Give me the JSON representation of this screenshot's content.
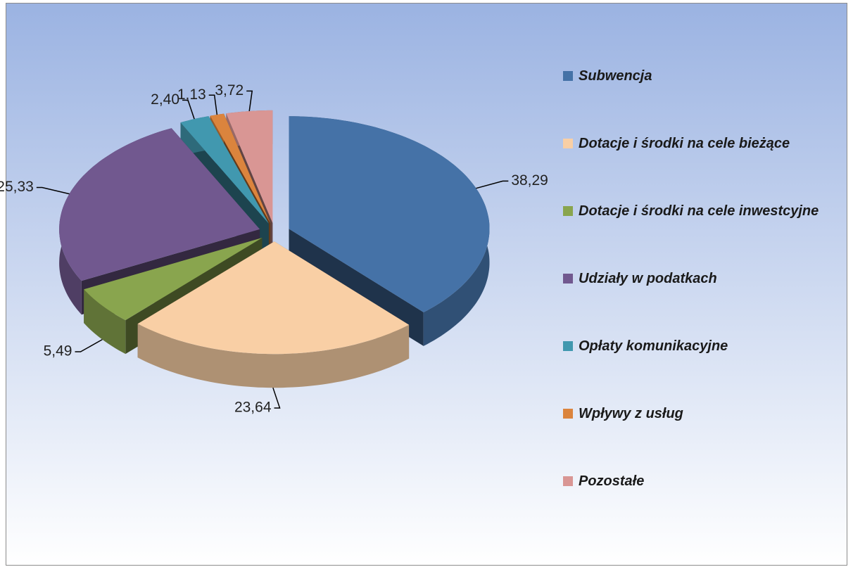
{
  "chart_data": {
    "type": "pie",
    "categories": [
      "Subwencja",
      "Dotacje i środki na cele bieżące",
      "Dotacje i środki na cele inwestcyjne",
      "Udziały w podatkach",
      "Opłaty komunikacyjne",
      "Wpływy z usług",
      "Pozostałe"
    ],
    "values": [
      38.29,
      23.64,
      5.49,
      25.33,
      2.4,
      1.13,
      3.72
    ],
    "value_labels": [
      "38,29",
      "23,64",
      "5,49",
      "25,33",
      "2,40",
      "1,13",
      "3,72"
    ],
    "colors": [
      "#4572a7",
      "#f9cfa5",
      "#89a54e",
      "#71588f",
      "#4198af",
      "#db843d",
      "#d99694"
    ],
    "legend": "right"
  }
}
